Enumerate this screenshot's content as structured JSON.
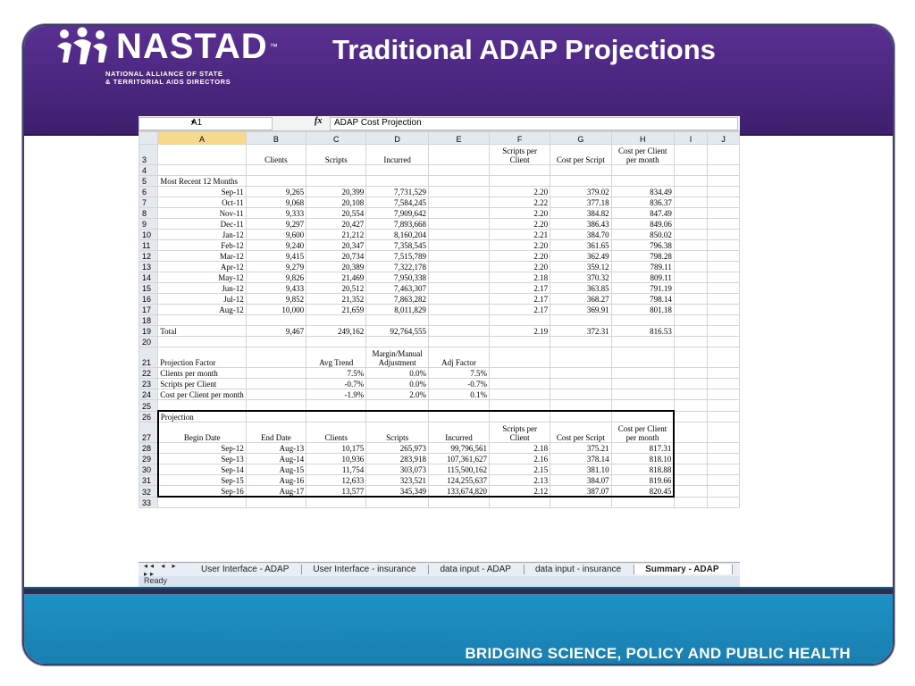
{
  "slide": {
    "title": "Traditional ADAP Projections",
    "tagline": "BRIDGING SCIENCE, POLICY AND PUBLIC HEALTH",
    "logo_word": "NASTAD",
    "logo_tm": "™",
    "logo_sub1": "NATIONAL ALLIANCE OF STATE",
    "logo_sub2": "& TERRITORIAL AIDS DIRECTORS"
  },
  "colors": {
    "top_band": "#4b2680",
    "bottom_band": "#1d8fc2",
    "frame": "#3f3f68"
  },
  "formula_bar": {
    "cell_ref": "A1",
    "fx": "fx",
    "content": "ADAP Cost Projection"
  },
  "columns": [
    "A",
    "B",
    "C",
    "D",
    "E",
    "F",
    "G",
    "H",
    "I",
    "J"
  ],
  "header_row": {
    "b": "Clients",
    "c": "Scripts",
    "d": "Incurred",
    "f1": "Scripts per",
    "f2": "Client",
    "g": "Cost per Script",
    "h1": "Cost per Client",
    "h2": "per month"
  },
  "recent_label": "Most Recent 12 Months",
  "monthly": [
    {
      "row": "6",
      "month": "Sep-11",
      "clients": "9,265",
      "scripts": "20,399",
      "incurred": "7,731,529",
      "spc": "2.20",
      "cps": "379.02",
      "cpc": "834.49"
    },
    {
      "row": "7",
      "month": "Oct-11",
      "clients": "9,068",
      "scripts": "20,108",
      "incurred": "7,584,245",
      "spc": "2.22",
      "cps": "377.18",
      "cpc": "836.37"
    },
    {
      "row": "8",
      "month": "Nov-11",
      "clients": "9,333",
      "scripts": "20,554",
      "incurred": "7,909,642",
      "spc": "2.20",
      "cps": "384.82",
      "cpc": "847.49"
    },
    {
      "row": "9",
      "month": "Dec-11",
      "clients": "9,297",
      "scripts": "20,427",
      "incurred": "7,893,668",
      "spc": "2.20",
      "cps": "386.43",
      "cpc": "849.06"
    },
    {
      "row": "10",
      "month": "Jan-12",
      "clients": "9,600",
      "scripts": "21,212",
      "incurred": "8,160,204",
      "spc": "2.21",
      "cps": "384.70",
      "cpc": "850.02"
    },
    {
      "row": "11",
      "month": "Feb-12",
      "clients": "9,240",
      "scripts": "20,347",
      "incurred": "7,358,545",
      "spc": "2.20",
      "cps": "361.65",
      "cpc": "796.38"
    },
    {
      "row": "12",
      "month": "Mar-12",
      "clients": "9,415",
      "scripts": "20,734",
      "incurred": "7,515,789",
      "spc": "2.20",
      "cps": "362.49",
      "cpc": "798.28"
    },
    {
      "row": "13",
      "month": "Apr-12",
      "clients": "9,279",
      "scripts": "20,389",
      "incurred": "7,322,178",
      "spc": "2.20",
      "cps": "359.12",
      "cpc": "789.11"
    },
    {
      "row": "14",
      "month": "May-12",
      "clients": "9,826",
      "scripts": "21,469",
      "incurred": "7,950,338",
      "spc": "2.18",
      "cps": "370.32",
      "cpc": "809.11"
    },
    {
      "row": "15",
      "month": "Jun-12",
      "clients": "9,433",
      "scripts": "20,512",
      "incurred": "7,463,307",
      "spc": "2.17",
      "cps": "363.85",
      "cpc": "791.19"
    },
    {
      "row": "16",
      "month": "Jul-12",
      "clients": "9,852",
      "scripts": "21,352",
      "incurred": "7,863,282",
      "spc": "2.17",
      "cps": "368.27",
      "cpc": "798.14"
    },
    {
      "row": "17",
      "month": "Aug-12",
      "clients": "10,000",
      "scripts": "21,659",
      "incurred": "8,011,829",
      "spc": "2.17",
      "cps": "369.91",
      "cpc": "801.18"
    }
  ],
  "total": {
    "label": "Total",
    "clients": "9,467",
    "scripts": "249,162",
    "incurred": "92,764,555",
    "spc": "2.19",
    "cps": "372.31",
    "cpc": "816.53"
  },
  "factors_header": {
    "label": "Projection Factor",
    "c": "Avg Trend",
    "d1": "Margin/Manual",
    "d2": "Adjustment",
    "e": "Adj Factor"
  },
  "factors": [
    {
      "row": "22",
      "label": "Clients per month",
      "trend": "7.5%",
      "adj": "0.0%",
      "factor": "7.5%"
    },
    {
      "row": "23",
      "label": "Scripts per Client",
      "trend": "-0.7%",
      "adj": "0.0%",
      "factor": "-0.7%"
    },
    {
      "row": "24",
      "label": "Cost per Client per month",
      "trend": "-1.9%",
      "adj": "2.0%",
      "factor": "0.1%"
    }
  ],
  "projection_label": "Projection",
  "projection_header": {
    "a": "Begin Date",
    "b": "End Date",
    "c": "Clients",
    "d": "Scripts",
    "e": "Incurred",
    "f1": "Scripts per",
    "f2": "Client",
    "g": "Cost per Script",
    "h1": "Cost per Client",
    "h2": "per month"
  },
  "projection": [
    {
      "row": "28",
      "begin": "Sep-12",
      "end": "Aug-13",
      "clients": "10,175",
      "scripts": "265,973",
      "incurred": "99,796,561",
      "spc": "2.18",
      "cps": "375.21",
      "cpc": "817.31"
    },
    {
      "row": "29",
      "begin": "Sep-13",
      "end": "Aug-14",
      "clients": "10,936",
      "scripts": "283,918",
      "incurred": "107,361,627",
      "spc": "2.16",
      "cps": "378.14",
      "cpc": "818.10"
    },
    {
      "row": "30",
      "begin": "Sep-14",
      "end": "Aug-15",
      "clients": "11,754",
      "scripts": "303,073",
      "incurred": "115,500,162",
      "spc": "2.15",
      "cps": "381.10",
      "cpc": "818.88"
    },
    {
      "row": "31",
      "begin": "Sep-15",
      "end": "Aug-16",
      "clients": "12,633",
      "scripts": "323,521",
      "incurred": "124,255,637",
      "spc": "2.13",
      "cps": "384.07",
      "cpc": "819.66"
    },
    {
      "row": "32",
      "begin": "Sep-16",
      "end": "Aug-17",
      "clients": "13,577",
      "scripts": "345,349",
      "incurred": "133,674,820",
      "spc": "2.12",
      "cps": "387.07",
      "cpc": "820.45"
    }
  ],
  "sheet_tabs": [
    "User Interface - ADAP",
    "User Interface - insurance",
    "data input - ADAP",
    "data input - insurance",
    "Summary - ADAP"
  ],
  "tab_nav": "◂◂ ◂ ▸ ▸▸",
  "status": "Ready"
}
